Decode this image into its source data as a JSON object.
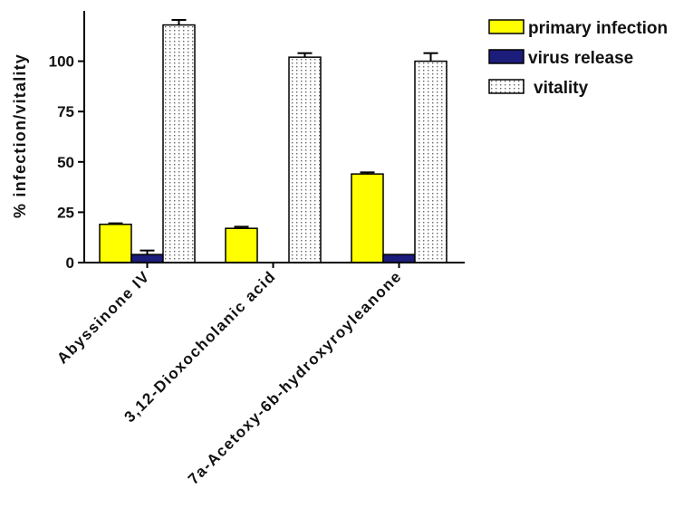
{
  "chart_data": {
    "type": "bar",
    "title": "",
    "xlabel": "",
    "ylabel": "% infection/vitality",
    "categories": [
      "Abyssinone IV",
      "3,12-Dioxocholanic acid",
      "7a-Acetoxy-6b-hydroxyroyleanone"
    ],
    "series": [
      {
        "name": "primary infection",
        "values": [
          19,
          17,
          44
        ],
        "errors": [
          0.5,
          0.8,
          0.8
        ],
        "color": "#ffff00"
      },
      {
        "name": "virus release",
        "values": [
          4,
          0,
          4
        ],
        "errors": [
          2,
          0,
          0
        ],
        "color": "#1c1c7a"
      },
      {
        "name": "vitality",
        "values": [
          118,
          102,
          100
        ],
        "errors": [
          2.5,
          2,
          4
        ],
        "color": "#ffffff",
        "pattern": "dotted"
      }
    ],
    "yticks": [
      0,
      25,
      50,
      75,
      100
    ],
    "ylim": [
      0,
      125
    ],
    "grid": false,
    "legend_position": "top-right"
  }
}
